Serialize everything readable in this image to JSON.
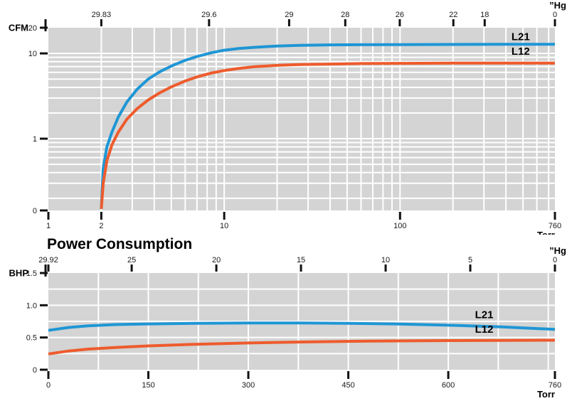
{
  "colors": {
    "plot_background": "#d3d4d3",
    "gridline": "#ffffff",
    "axis_tick": "#111111",
    "tick_text": "#1a1a1a",
    "label_text": "#000000",
    "l21_blue": "#1f96d5",
    "l12_orange": "#ee5b2d"
  },
  "power_chart_title": "Power Consumption",
  "chart_data": [
    {
      "id": "flow",
      "type": "line",
      "title": "",
      "x_axis": {
        "label": "Torr",
        "scale": "log",
        "range": [
          1,
          760
        ],
        "ticks": [
          {
            "label": "1",
            "value": 1
          },
          {
            "label": "2",
            "value": 2
          },
          {
            "label": "10",
            "value": 10
          },
          {
            "label": "100",
            "value": 100
          },
          {
            "label": "760",
            "value": 760
          }
        ]
      },
      "x_axis_top": {
        "label": "”Hg",
        "ticks": [
          {
            "label": "29.83",
            "value": 2
          },
          {
            "label": "29.6",
            "value": 8.2
          },
          {
            "label": "29",
            "value": 23.4
          },
          {
            "label": "28",
            "value": 48.8
          },
          {
            "label": "26",
            "value": 99.6
          },
          {
            "label": "22",
            "value": 201
          },
          {
            "label": "18",
            "value": 303
          },
          {
            "label": "0",
            "value": 760
          }
        ]
      },
      "y_axis": {
        "label": "CFM",
        "scale": "log",
        "range": [
          0.144,
          20
        ],
        "ticks": [
          {
            "label": "0",
            "value": null
          },
          {
            "label": "1",
            "value": 1
          },
          {
            "label": "10",
            "value": 10
          },
          {
            "label": "20",
            "value": 20
          }
        ]
      },
      "series": [
        {
          "name": "L21",
          "color": "#1f96d5",
          "label_at": [
            430,
            14.3
          ],
          "points": [
            [
              2,
              0.15
            ],
            [
              2.05,
              0.45
            ],
            [
              2.15,
              0.8
            ],
            [
              2.3,
              1.2
            ],
            [
              2.5,
              1.8
            ],
            [
              2.8,
              2.7
            ],
            [
              3.2,
              3.8
            ],
            [
              3.7,
              5.0
            ],
            [
              4.3,
              6.1
            ],
            [
              5,
              7.1
            ],
            [
              6,
              8.3
            ],
            [
              7,
              9.2
            ],
            [
              8.5,
              10.2
            ],
            [
              10,
              10.9
            ],
            [
              12,
              11.4
            ],
            [
              15,
              11.8
            ],
            [
              20,
              12.2
            ],
            [
              27,
              12.45
            ],
            [
              40,
              12.6
            ],
            [
              60,
              12.65
            ],
            [
              100,
              12.7
            ],
            [
              200,
              12.75
            ],
            [
              400,
              12.8
            ],
            [
              760,
              12.8
            ]
          ]
        },
        {
          "name": "L12",
          "color": "#ee5b2d",
          "label_at": [
            430,
            9.6
          ],
          "points": [
            [
              2,
              0.15
            ],
            [
              2.05,
              0.3
            ],
            [
              2.15,
              0.55
            ],
            [
              2.3,
              0.85
            ],
            [
              2.5,
              1.2
            ],
            [
              2.8,
              1.7
            ],
            [
              3.2,
              2.25
            ],
            [
              3.7,
              2.85
            ],
            [
              4.3,
              3.45
            ],
            [
              5,
              4.05
            ],
            [
              6,
              4.75
            ],
            [
              7,
              5.3
            ],
            [
              8.5,
              5.9
            ],
            [
              10,
              6.3
            ],
            [
              12,
              6.65
            ],
            [
              15,
              7.0
            ],
            [
              20,
              7.25
            ],
            [
              27,
              7.4
            ],
            [
              40,
              7.5
            ],
            [
              60,
              7.6
            ],
            [
              100,
              7.65
            ],
            [
              200,
              7.7
            ],
            [
              400,
              7.7
            ],
            [
              760,
              7.7
            ]
          ]
        }
      ]
    },
    {
      "id": "power",
      "type": "line",
      "title": "Power Consumption",
      "x_axis": {
        "label": "Torr",
        "scale": "linear",
        "range": [
          0,
          760
        ],
        "minor_step": 75,
        "ticks": [
          {
            "label": "0",
            "value": 0
          },
          {
            "label": "150",
            "value": 150
          },
          {
            "label": "300",
            "value": 300
          },
          {
            "label": "450",
            "value": 450
          },
          {
            "label": "600",
            "value": 600
          },
          {
            "label": "760",
            "value": 760
          }
        ]
      },
      "x_axis_top": {
        "label": "”Hg",
        "ticks": [
          {
            "label": "29.92",
            "value": 0
          },
          {
            "label": "25",
            "value": 125
          },
          {
            "label": "20",
            "value": 252
          },
          {
            "label": "15",
            "value": 379
          },
          {
            "label": "10",
            "value": 506
          },
          {
            "label": "5",
            "value": 633
          },
          {
            "label": "0",
            "value": 760
          }
        ]
      },
      "y_axis": {
        "label": "BHP",
        "scale": "linear",
        "range": [
          0,
          1.5
        ],
        "minor_step": 0.25,
        "ticks": [
          {
            "label": "0",
            "value": 0
          },
          {
            "label": "0.5",
            "value": 0.5
          },
          {
            "label": "1.0",
            "value": 1.0
          },
          {
            "label": "1.5",
            "value": 1.5
          }
        ]
      },
      "series": [
        {
          "name": "L21",
          "color": "#1f96d5",
          "label_at": [
            640,
            0.8
          ],
          "points": [
            [
              0,
              0.61
            ],
            [
              30,
              0.655
            ],
            [
              60,
              0.68
            ],
            [
              100,
              0.7
            ],
            [
              150,
              0.71
            ],
            [
              220,
              0.72
            ],
            [
              300,
              0.725
            ],
            [
              380,
              0.725
            ],
            [
              450,
              0.72
            ],
            [
              520,
              0.71
            ],
            [
              600,
              0.69
            ],
            [
              680,
              0.665
            ],
            [
              760,
              0.625
            ]
          ]
        },
        {
          "name": "L12",
          "color": "#ee5b2d",
          "label_at": [
            640,
            0.575
          ],
          "points": [
            [
              0,
              0.245
            ],
            [
              30,
              0.29
            ],
            [
              60,
              0.32
            ],
            [
              100,
              0.345
            ],
            [
              150,
              0.37
            ],
            [
              220,
              0.395
            ],
            [
              300,
              0.415
            ],
            [
              380,
              0.43
            ],
            [
              450,
              0.44
            ],
            [
              520,
              0.447
            ],
            [
              600,
              0.452
            ],
            [
              680,
              0.456
            ],
            [
              760,
              0.458
            ]
          ]
        }
      ]
    }
  ]
}
